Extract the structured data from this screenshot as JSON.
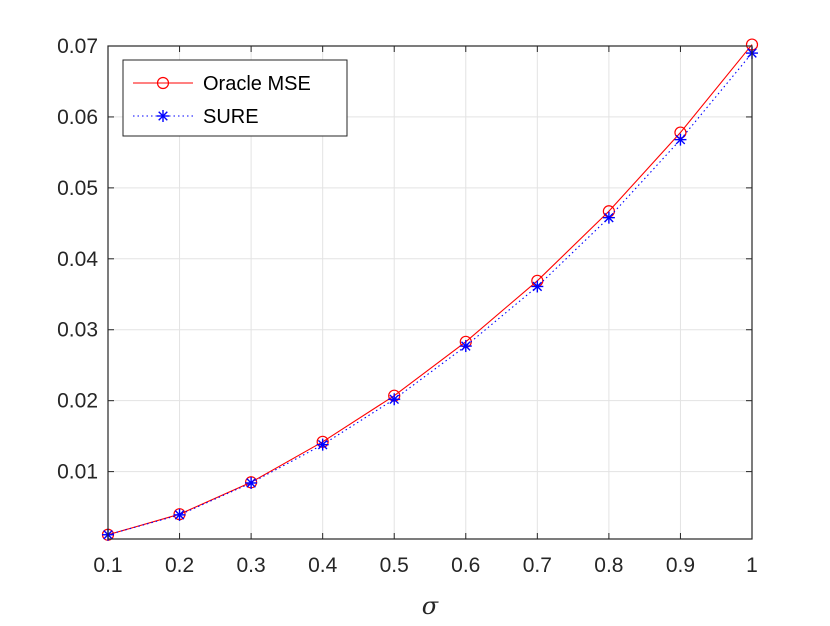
{
  "chart_data": {
    "type": "line",
    "title": "",
    "xlabel": "σ",
    "ylabel": "",
    "x": [
      0.1,
      0.2,
      0.3,
      0.4,
      0.5,
      0.6,
      0.7,
      0.8,
      0.9,
      1
    ],
    "xlim": [
      0.1,
      1
    ],
    "ylim": [
      0.0005,
      0.07
    ],
    "x_ticks": [
      "0.1",
      "0.2",
      "0.3",
      "0.4",
      "0.5",
      "0.6",
      "0.7",
      "0.8",
      "0.9",
      "1"
    ],
    "y_ticks": [
      "0.01",
      "0.02",
      "0.03",
      "0.04",
      "0.05",
      "0.06",
      "0.07"
    ],
    "grid": true,
    "legend_position": "top-left",
    "series": [
      {
        "name": "Oracle MSE",
        "color": "#ff0000",
        "line_style": "solid",
        "marker": "circle",
        "values": [
          0.0011,
          0.004,
          0.0085,
          0.0142,
          0.0207,
          0.0283,
          0.0369,
          0.0467,
          0.0578,
          0.0702
        ]
      },
      {
        "name": "SURE",
        "color": "#0000ff",
        "line_style": "dotted",
        "marker": "asterisk",
        "values": [
          0.0011,
          0.0039,
          0.0084,
          0.0138,
          0.0202,
          0.0277,
          0.0361,
          0.0458,
          0.0568,
          0.069
        ]
      }
    ]
  }
}
